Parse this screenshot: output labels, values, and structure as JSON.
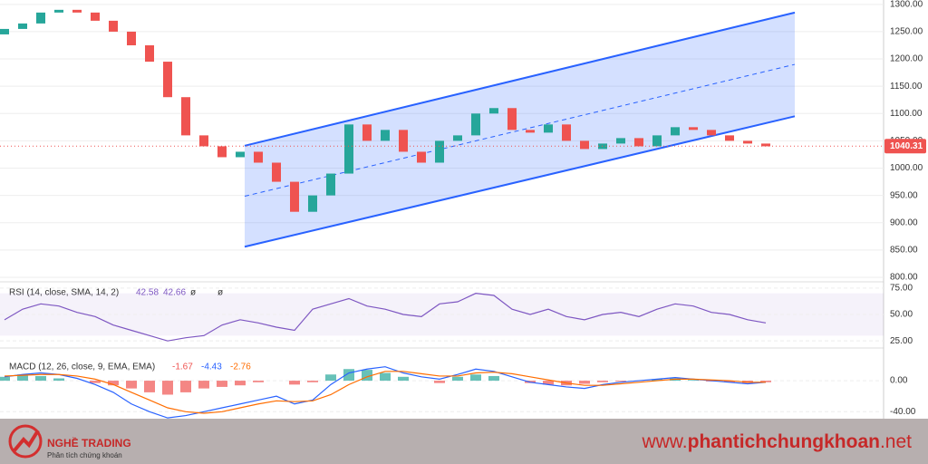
{
  "chart_data": [
    {
      "type": "candlestick",
      "x": [
        0,
        1,
        2,
        3,
        4,
        5,
        6,
        7,
        8,
        9,
        10,
        11,
        12,
        13,
        14,
        15,
        16,
        17,
        18,
        19,
        20,
        21,
        22,
        23,
        24,
        25,
        26,
        27,
        28,
        29,
        30,
        31,
        32,
        33,
        34,
        35,
        36,
        37,
        38,
        39,
        40,
        41,
        42
      ],
      "open": [
        1245,
        1255,
        1265,
        1285,
        1290,
        1285,
        1270,
        1250,
        1225,
        1195,
        1130,
        1060,
        1040,
        1020,
        1030,
        1010,
        975,
        920,
        950,
        990,
        1080,
        1050,
        1070,
        1030,
        1010,
        1050,
        1060,
        1100,
        1110,
        1070,
        1065,
        1080,
        1050,
        1035,
        1045,
        1055,
        1040,
        1060,
        1075,
        1070,
        1060,
        1050,
        1045
      ],
      "close": [
        1255,
        1265,
        1285,
        1290,
        1285,
        1270,
        1250,
        1225,
        1195,
        1130,
        1060,
        1040,
        1020,
        1030,
        1010,
        975,
        920,
        950,
        990,
        1080,
        1050,
        1070,
        1030,
        1010,
        1050,
        1060,
        1100,
        1110,
        1070,
        1065,
        1080,
        1050,
        1035,
        1045,
        1055,
        1040,
        1060,
        1075,
        1070,
        1060,
        1050,
        1045,
        1040
      ],
      "xlim": [
        -0.25,
        48
      ],
      "ylim": [
        790,
        1308
      ],
      "yticks": [
        {
          "value": 1300,
          "label": "1300.00"
        },
        {
          "value": 1250,
          "label": "1250.00"
        },
        {
          "value": 1200,
          "label": "1200.00"
        },
        {
          "value": 1150,
          "label": "1150.00"
        },
        {
          "value": 1100,
          "label": "1100.00"
        },
        {
          "value": 1050,
          "label": "1050.00"
        },
        {
          "value": 1000,
          "label": "1000.00"
        },
        {
          "value": 950,
          "label": "950.00"
        },
        {
          "value": 900,
          "label": "900.00"
        },
        {
          "value": 850,
          "label": "850.00"
        },
        {
          "value": 800,
          "label": "800.00"
        }
      ],
      "last_price": 1040.31,
      "channel": {
        "x": [
          13.25,
          43.6
        ],
        "upper": [
          1041,
          1285
        ],
        "lower": [
          856,
          1095
        ]
      },
      "up_color": "#26a69a",
      "down_color": "#ef5350",
      "channel_color": "#2962ff"
    },
    {
      "type": "line",
      "title": "RSI (14, close, SMA, 14, 2)",
      "legend_values": [
        "42.58",
        "42.66",
        "ø",
        "ø"
      ],
      "x": [
        0,
        1,
        2,
        3,
        4,
        5,
        6,
        7,
        8,
        9,
        10,
        11,
        12,
        13,
        14,
        15,
        16,
        17,
        18,
        19,
        20,
        21,
        22,
        23,
        24,
        25,
        26,
        27,
        28,
        29,
        30,
        31,
        32,
        33,
        34,
        35,
        36,
        37,
        38,
        39,
        40,
        41,
        42
      ],
      "values": [
        45,
        55,
        60,
        58,
        52,
        48,
        40,
        35,
        30,
        25,
        28,
        30,
        40,
        45,
        42,
        38,
        35,
        55,
        60,
        65,
        58,
        55,
        50,
        48,
        60,
        62,
        70,
        68,
        55,
        50,
        55,
        48,
        45,
        50,
        52,
        48,
        55,
        60,
        58,
        52,
        50,
        45,
        42
      ],
      "color": "#7e57c2",
      "xlim": [
        -0.25,
        48
      ],
      "ylim": [
        20,
        80
      ],
      "band": [
        30,
        70
      ],
      "yticks": [
        {
          "value": 75,
          "label": "75.00"
        },
        {
          "value": 50,
          "label": "50.00"
        },
        {
          "value": 25,
          "label": "25.00"
        }
      ]
    },
    {
      "type": "macd",
      "title": "MACD (12, 26, close, 9, EMA, EMA)",
      "legend_values": [
        "-1.67",
        "-4.43",
        "-2.76"
      ],
      "x": [
        0,
        1,
        2,
        3,
        4,
        5,
        6,
        7,
        8,
        9,
        10,
        11,
        12,
        13,
        14,
        15,
        16,
        17,
        18,
        19,
        20,
        21,
        22,
        23,
        24,
        25,
        26,
        27,
        28,
        29,
        30,
        31,
        32,
        33,
        34,
        35,
        36,
        37,
        38,
        39,
        40,
        41,
        42
      ],
      "histogram": [
        5,
        8,
        6,
        3,
        0,
        -3,
        -6,
        -10,
        -15,
        -18,
        -15,
        -10,
        -8,
        -6,
        -2,
        0,
        -5,
        -2,
        8,
        15,
        14,
        10,
        5,
        0,
        -3,
        5,
        8,
        6,
        0,
        -3,
        -5,
        -6,
        -4,
        -2,
        -1,
        0,
        2,
        3,
        1,
        -1,
        -2,
        -3,
        -2
      ],
      "series": [
        {
          "color": "#2962ff",
          "values": [
            5,
            8,
            10,
            8,
            3,
            -5,
            -15,
            -30,
            -40,
            -48,
            -45,
            -40,
            -35,
            -30,
            -25,
            -20,
            -30,
            -25,
            -5,
            10,
            15,
            18,
            10,
            5,
            2,
            8,
            15,
            12,
            5,
            -2,
            -5,
            -8,
            -10,
            -5,
            -2,
            0,
            2,
            4,
            2,
            0,
            -2,
            -4,
            -2
          ]
        },
        {
          "color": "#ff6d00",
          "values": [
            6,
            7,
            8,
            8,
            6,
            2,
            -5,
            -15,
            -25,
            -35,
            -40,
            -42,
            -40,
            -35,
            -30,
            -26,
            -27,
            -26,
            -18,
            -5,
            5,
            12,
            12,
            9,
            6,
            6,
            10,
            11,
            9,
            5,
            1,
            -3,
            -6,
            -6,
            -4,
            -2,
            0,
            2,
            2,
            1,
            0,
            -2,
            -2
          ]
        }
      ],
      "xlim": [
        -0.25,
        48
      ],
      "ylim": [
        -49,
        41
      ],
      "yticks": [
        {
          "value": 0,
          "label": "0.00"
        },
        {
          "value": -40,
          "label": "-40.00"
        }
      ]
    }
  ],
  "footer": {
    "brand": "NGHỀ TRADING",
    "tagline": "Phân tích chứng khoán",
    "url_prefix": "www.",
    "url_main": "phantichchungkhoan",
    "url_suffix": ".net"
  }
}
